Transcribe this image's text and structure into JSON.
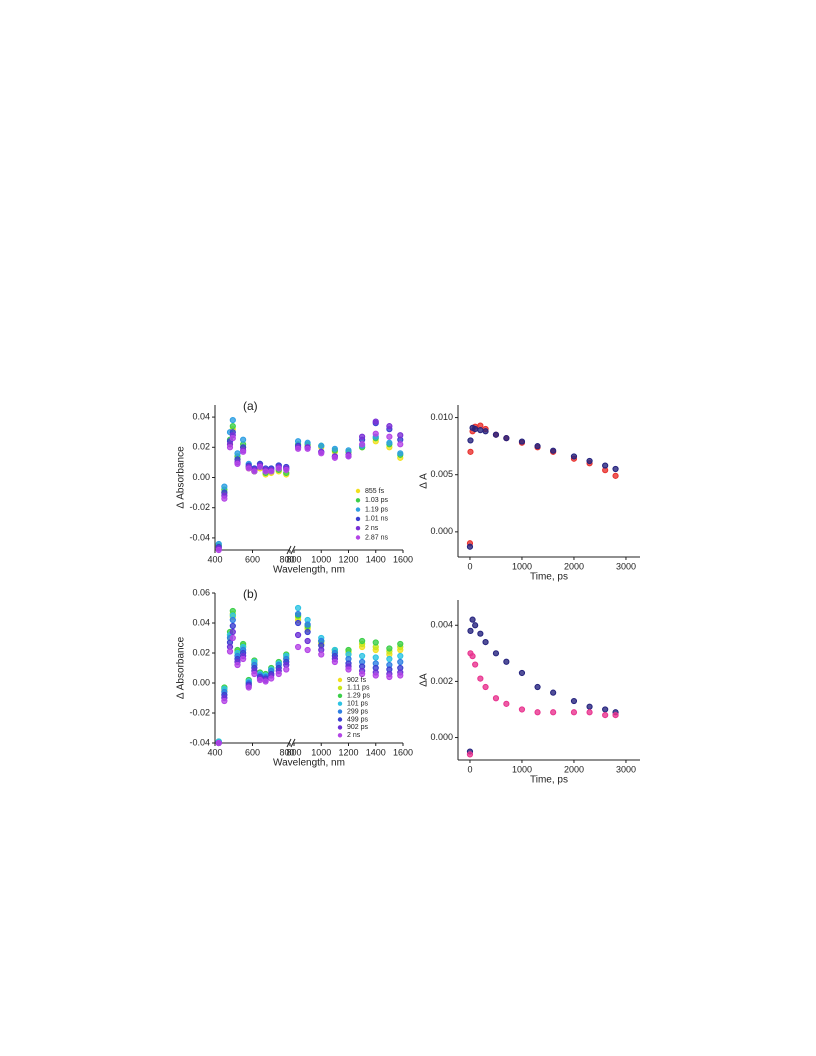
{
  "chart_data": [
    {
      "type": "scatter",
      "panel_label": "(a)",
      "xlabel": "Wavelength, nm",
      "ylabel": "Δ Absorbance",
      "x_segments": [
        {
          "xlim": [
            400,
            800
          ],
          "xticks": [
            400,
            600,
            800
          ]
        },
        {
          "xlim": [
            800,
            1600
          ],
          "xticks": [
            800,
            1000,
            1200,
            1400,
            1600
          ]
        }
      ],
      "ylim": [
        -0.048,
        0.048
      ],
      "yticks": [
        0.04,
        0.02,
        {
          "value": 0,
          "label": "0.00"
        },
        -0.02,
        -0.04
      ],
      "legend": "lower right",
      "x": [
        420,
        450,
        480,
        495,
        520,
        550,
        580,
        610,
        640,
        670,
        700,
        740,
        780,
        830,
        900,
        1000,
        1100,
        1200,
        1300,
        1400,
        1500,
        1580
      ],
      "series": [
        {
          "name": "855 fs",
          "color": "#f2e01e",
          "values": [
            -0.045,
            -0.01,
            0.022,
            0.032,
            0.012,
            0.02,
            0.006,
            0.004,
            0.006,
            0.002,
            0.003,
            0.004,
            0.002,
            0.02,
            0.021,
            0.02,
            0.017,
            0.017,
            0.02,
            0.024,
            0.02,
            0.013
          ]
        },
        {
          "name": "1.03 ps",
          "color": "#3ccf4a",
          "values": [
            -0.045,
            -0.008,
            0.025,
            0.034,
            0.014,
            0.022,
            0.007,
            0.004,
            0.007,
            0.003,
            0.004,
            0.005,
            0.003,
            0.022,
            0.022,
            0.021,
            0.018,
            0.017,
            0.02,
            0.026,
            0.022,
            0.015
          ]
        },
        {
          "name": "1.19 ps",
          "color": "#2d9fe3",
          "values": [
            -0.044,
            -0.006,
            0.03,
            0.038,
            0.016,
            0.025,
            0.009,
            0.006,
            0.009,
            0.005,
            0.006,
            0.008,
            0.006,
            0.024,
            0.023,
            0.021,
            0.019,
            0.018,
            0.021,
            0.027,
            0.023,
            0.016
          ]
        },
        {
          "name": "1.01 ns",
          "color": "#3a3fd0",
          "values": [
            -0.046,
            -0.01,
            0.024,
            0.03,
            0.012,
            0.02,
            0.008,
            0.006,
            0.009,
            0.006,
            0.006,
            0.008,
            0.007,
            0.021,
            0.02,
            0.017,
            0.014,
            0.014,
            0.025,
            0.036,
            0.032,
            0.025
          ]
        },
        {
          "name": "2 ns",
          "color": "#7a2fd6",
          "values": [
            -0.047,
            -0.012,
            0.022,
            0.028,
            0.01,
            0.018,
            0.007,
            0.005,
            0.008,
            0.005,
            0.005,
            0.007,
            0.006,
            0.02,
            0.02,
            0.017,
            0.014,
            0.015,
            0.027,
            0.037,
            0.034,
            0.028
          ]
        },
        {
          "name": "2.87 ns",
          "color": "#b444e6",
          "values": [
            -0.048,
            -0.014,
            0.02,
            0.026,
            0.009,
            0.017,
            0.006,
            0.004,
            0.007,
            0.004,
            0.004,
            0.006,
            0.005,
            0.019,
            0.019,
            0.016,
            0.013,
            0.014,
            0.022,
            0.029,
            0.027,
            0.022
          ]
        }
      ]
    },
    {
      "type": "scatter",
      "xlabel": "Time, ps",
      "ylabel": "Δ A",
      "xlim": [
        -230,
        3270
      ],
      "xticks": [
        0,
        1000,
        2000,
        3000
      ],
      "ylim": [
        -0.0022,
        0.0111
      ],
      "yticks": [
        {
          "value": 0.01,
          "label": "0.010"
        },
        {
          "value": 0.005,
          "label": "0.005"
        },
        {
          "value": 0,
          "label": "0.000"
        }
      ],
      "x": [
        0,
        10,
        50,
        100,
        200,
        300,
        500,
        700,
        1000,
        1300,
        1600,
        2000,
        2300,
        2600,
        2800
      ],
      "series": [
        {
          "color": "#e8312e",
          "values": [
            -0.001,
            0.007,
            0.0088,
            0.0092,
            0.0093,
            0.009,
            0.0085,
            0.0082,
            0.0078,
            0.0074,
            0.007,
            0.0064,
            0.006,
            0.0054,
            0.0049
          ]
        },
        {
          "color": "#25237e",
          "values": [
            -0.0013,
            0.008,
            0.0091,
            0.009,
            0.0089,
            0.0088,
            0.0085,
            0.0082,
            0.0079,
            0.0075,
            0.0071,
            0.0066,
            0.0062,
            0.0058,
            0.0055
          ]
        }
      ]
    },
    {
      "type": "scatter",
      "panel_label": "(b)",
      "xlabel": "Wavelength, nm",
      "ylabel": "Δ Absorbance",
      "x_segments": [
        {
          "xlim": [
            400,
            800
          ],
          "xticks": [
            400,
            600,
            800
          ]
        },
        {
          "xlim": [
            800,
            1600
          ],
          "xticks": [
            800,
            1000,
            1200,
            1400,
            1600
          ]
        }
      ],
      "ylim": [
        -0.04,
        0.06
      ],
      "yticks": [
        0.06,
        0.04,
        0.02,
        {
          "value": 0,
          "label": "0.00"
        },
        -0.02,
        -0.04
      ],
      "legend": "lower right",
      "x": [
        420,
        450,
        480,
        495,
        520,
        550,
        580,
        610,
        640,
        670,
        700,
        740,
        780,
        830,
        900,
        1000,
        1100,
        1200,
        1300,
        1400,
        1500,
        1580
      ],
      "series": [
        {
          "name": "902 fs",
          "color": "#f2e01e",
          "values": [
            -0.04,
            -0.005,
            0.03,
            0.044,
            0.02,
            0.024,
            0.0,
            0.012,
            0.005,
            0.004,
            0.008,
            0.012,
            0.016,
            0.042,
            0.036,
            0.026,
            0.02,
            0.02,
            0.024,
            0.022,
            0.019,
            0.022
          ]
        },
        {
          "name": "1.11 ps",
          "color": "#c8e61c",
          "values": [
            -0.04,
            -0.004,
            0.032,
            0.046,
            0.021,
            0.025,
            0.001,
            0.013,
            0.006,
            0.005,
            0.009,
            0.013,
            0.017,
            0.044,
            0.037,
            0.027,
            0.021,
            0.021,
            0.026,
            0.024,
            0.021,
            0.024
          ]
        },
        {
          "name": "1.29 ps",
          "color": "#3ccf4a",
          "values": [
            -0.039,
            -0.003,
            0.034,
            0.048,
            0.022,
            0.026,
            0.002,
            0.015,
            0.007,
            0.006,
            0.01,
            0.014,
            0.019,
            0.045,
            0.038,
            0.028,
            0.022,
            0.022,
            0.028,
            0.027,
            0.023,
            0.026
          ]
        },
        {
          "name": "101 ps",
          "color": "#2dc3e3",
          "values": [
            -0.039,
            -0.004,
            0.032,
            0.045,
            0.02,
            0.024,
            0.001,
            0.014,
            0.006,
            0.005,
            0.009,
            0.013,
            0.018,
            0.05,
            0.042,
            0.03,
            0.022,
            0.019,
            0.018,
            0.017,
            0.016,
            0.018
          ]
        },
        {
          "name": "299 ps",
          "color": "#2d7fe3",
          "values": [
            -0.04,
            -0.006,
            0.03,
            0.042,
            0.018,
            0.022,
            0.0,
            0.012,
            0.005,
            0.004,
            0.008,
            0.012,
            0.016,
            0.046,
            0.039,
            0.028,
            0.02,
            0.016,
            0.014,
            0.013,
            0.012,
            0.014
          ]
        },
        {
          "name": "499 ps",
          "color": "#3a3fd0",
          "values": [
            -0.04,
            -0.008,
            0.027,
            0.038,
            0.016,
            0.02,
            -0.001,
            0.01,
            0.004,
            0.003,
            0.006,
            0.01,
            0.014,
            0.04,
            0.034,
            0.025,
            0.018,
            0.013,
            0.011,
            0.01,
            0.009,
            0.01
          ]
        },
        {
          "name": "902 ps",
          "color": "#6a2fd6",
          "values": [
            -0.04,
            -0.01,
            0.024,
            0.034,
            0.014,
            0.018,
            -0.002,
            0.008,
            0.003,
            0.002,
            0.005,
            0.008,
            0.012,
            0.032,
            0.028,
            0.022,
            0.016,
            0.011,
            0.008,
            0.007,
            0.006,
            0.007
          ]
        },
        {
          "name": "2 ns",
          "color": "#b444e6",
          "values": [
            -0.04,
            -0.012,
            0.021,
            0.03,
            0.012,
            0.016,
            -0.003,
            0.006,
            0.002,
            0.001,
            0.003,
            0.006,
            0.009,
            0.024,
            0.022,
            0.019,
            0.014,
            0.009,
            0.006,
            0.005,
            0.004,
            0.005
          ]
        }
      ]
    },
    {
      "type": "scatter",
      "xlabel": "Time, ps",
      "ylabel": "ΔA",
      "xlim": [
        -230,
        3270
      ],
      "xticks": [
        0,
        1000,
        2000,
        3000
      ],
      "ylim": [
        -0.0008,
        0.0049
      ],
      "yticks": [
        {
          "value": 0.004,
          "label": "0.004"
        },
        {
          "value": 0.002,
          "label": "0.002"
        },
        {
          "value": 0,
          "label": "0.000"
        }
      ],
      "x": [
        0,
        10,
        50,
        100,
        200,
        300,
        500,
        700,
        1000,
        1300,
        1600,
        2000,
        2300,
        2600,
        2800
      ],
      "series": [
        {
          "color": "#25237e",
          "values": [
            -0.0005,
            0.0038,
            0.0042,
            0.004,
            0.0037,
            0.0034,
            0.003,
            0.0027,
            0.0023,
            0.0018,
            0.0016,
            0.0013,
            0.0011,
            0.001,
            0.0009
          ]
        },
        {
          "color": "#e8338f",
          "values": [
            -0.0006,
            0.003,
            0.0029,
            0.0026,
            0.0021,
            0.0018,
            0.0014,
            0.0012,
            0.001,
            0.0009,
            0.0009,
            0.0009,
            0.0009,
            0.0008,
            0.0008
          ]
        }
      ]
    }
  ]
}
